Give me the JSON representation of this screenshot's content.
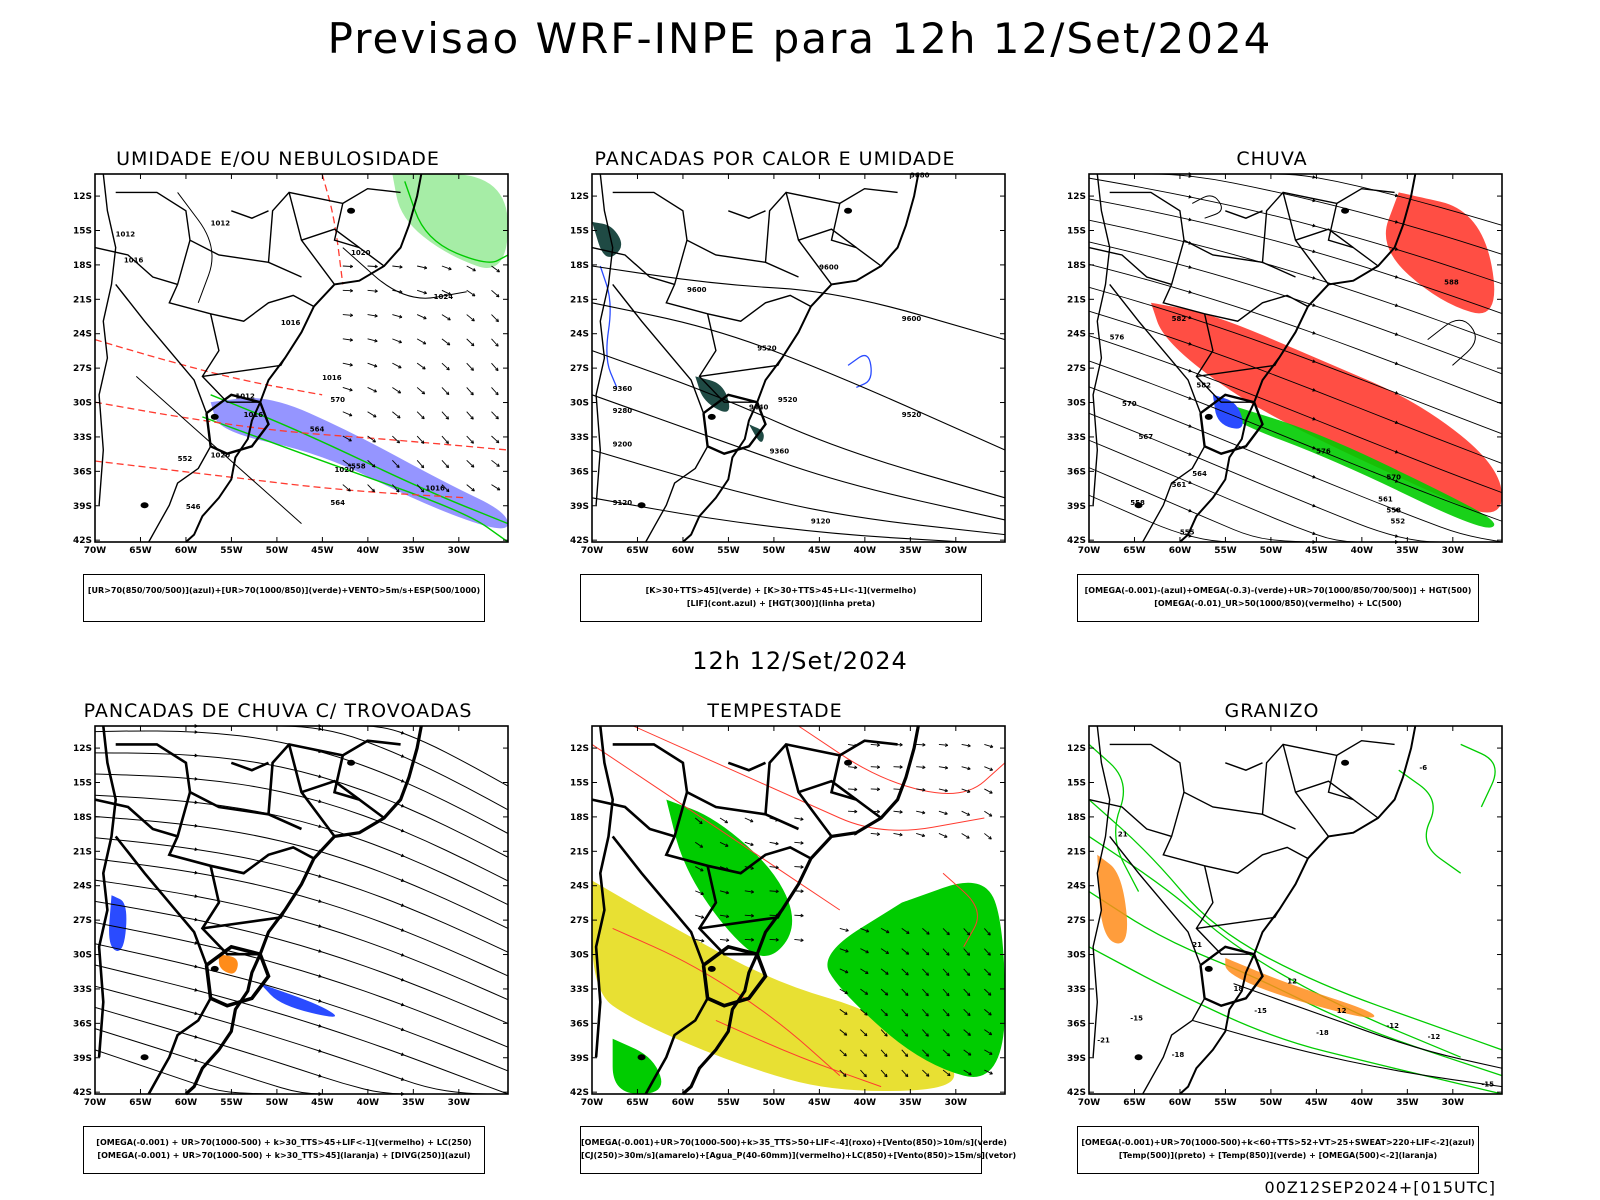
{
  "header": {
    "title": "Previsao WRF-INPE  para 12h 12/Set/2024",
    "subtitle": "12h 12/Set/2024",
    "stamp": "00Z12SEP2024+[015UTC]"
  },
  "axes": {
    "lon_ticks": [
      "70W",
      "65W",
      "60W",
      "55W",
      "50W",
      "45W",
      "40W",
      "35W",
      "30W"
    ],
    "lat_ticks": [
      "12S",
      "15S",
      "18S",
      "21S",
      "24S",
      "27S",
      "30S",
      "33S",
      "36S",
      "39S",
      "42S"
    ]
  },
  "colors": {
    "frame": "#000000",
    "red": "#ff3b30",
    "green": "#00cc00",
    "blue": "#2a4bff",
    "yellow": "#e8e033",
    "dark_teal": "#1f4a44",
    "orange": "#ff8c1a",
    "purple_fill": "#7b7bff"
  },
  "panels": [
    {
      "id": "umidade",
      "title": "UMIDADE E/OU NEBULOSIDADE",
      "legend": [
        "[UR>70(850/700/500)](azul)+[UR>70(1000/850)](verde)+VENTO>5m/s+ESP(500/1000)"
      ],
      "labels": [
        "1012",
        "1016",
        "1012",
        "1020",
        "1024",
        "1016",
        "1016",
        "1012",
        "1016",
        "1020",
        "1016",
        "1020",
        "570",
        "564",
        "558",
        "552",
        "546",
        "564"
      ]
    },
    {
      "id": "pancadas-calor",
      "title": "PANCADAS POR CALOR E UMIDADE",
      "legend": [
        "[K>30+TTS>45](verde) + [K>30+TTS>45+LI<-1](vermelho)",
        "[LIF](cont.azul) + [HGT(300)](linha preta)"
      ],
      "labels": [
        "9680",
        "9600",
        "9600",
        "9520",
        "9600",
        "9520",
        "9440",
        "9360",
        "9280",
        "9200",
        "9360",
        "9120",
        "9120",
        "9520"
      ]
    },
    {
      "id": "chuva",
      "title": "CHUVA",
      "legend": [
        "[OMEGA(-0.001)-(azul)+OMEGA(-0.3)-(verde)+UR>70(1000/850/700/500)] + HGT(500)",
        "[OMEGA(-0.01)_UR>50(1000/850)(vermelho) + LC(500)"
      ],
      "labels": [
        "588",
        "582",
        "576",
        "582",
        "570",
        "567",
        "564",
        "561",
        "558",
        "555",
        "561",
        "558",
        "552",
        "576",
        "570"
      ]
    },
    {
      "id": "trovoadas",
      "title": "PANCADAS DE CHUVA C/ TROVOADAS",
      "legend": [
        "[OMEGA(-0.001) + UR>70(1000-500) + k>30_TTS>45+LIF<-1](vermelho) + LC(250)",
        "[OMEGA(-0.001) + UR>70(1000-500) + k>30_TTS>45](laranja) + [DIVG(250)](azul)"
      ],
      "labels": []
    },
    {
      "id": "tempestade",
      "title": "TEMPESTADE",
      "legend": [
        "[OMEGA(-0.001)+UR>70(1000-500)+k>35_TTS>50+LIF<-4](roxo)+[Vento(850)>10m/s](verde)",
        "[CJ(250)>30m/s](amarelo)+[Agua_P(40-60mm)](vermelho)+LC(850)+[Vento(850)>15m/s](vetor)"
      ],
      "labels": []
    },
    {
      "id": "granizo",
      "title": "GRANIZO",
      "legend": [
        "[OMEGA(-0.001)+UR>70(1000-500)+k<60+TTS>52+VT>25+SWEAT>220+LIF<-2](azul)",
        "[Temp(500)](preto) + [Temp(850)](verde) + [OMEGA(500)<-2](laranja)"
      ],
      "labels": [
        "-21",
        "-18",
        "-15",
        "-12",
        "-15",
        "-12",
        "-18",
        "-15",
        "12",
        "12",
        "18",
        "21",
        "21",
        "-6"
      ]
    }
  ]
}
